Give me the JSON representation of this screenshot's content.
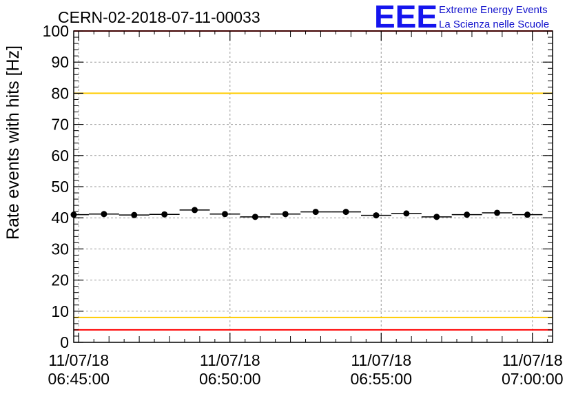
{
  "header": {
    "title": "CERN-02-2018-07-11-00033",
    "logo_mark": "EEE",
    "logo_line1": "Extreme Energy Events",
    "logo_line2": "La Scienza nelle Scuole"
  },
  "chart_data": {
    "type": "scatter",
    "ylabel": "Rate events with hits [Hz]",
    "xlabel": "",
    "ylim": [
      0,
      100
    ],
    "y_ticks": [
      0,
      10,
      20,
      30,
      40,
      50,
      60,
      70,
      80,
      90,
      100
    ],
    "xlim": [
      "2018-07-11 06:44:50",
      "2018-07-11 07:00:40"
    ],
    "x_ticks": [
      {
        "line1": "11/07/18",
        "line2": "06:45:00",
        "value": "2018-07-11 06:45:00"
      },
      {
        "line1": "11/07/18",
        "line2": "06:50:00",
        "value": "2018-07-11 06:50:00"
      },
      {
        "line1": "11/07/18",
        "line2": "06:55:00",
        "value": "2018-07-11 06:55:00"
      },
      {
        "line1": "11/07/18",
        "line2": "07:00:00",
        "value": "2018-07-11 07:00:00"
      }
    ],
    "grid": true,
    "series": [
      {
        "marker": "circle",
        "color": "#000000",
        "bin_width_seconds": 60,
        "points": [
          {
            "x": "2018-07-11 06:44:50",
            "y": 41.0
          },
          {
            "x": "2018-07-11 06:45:50",
            "y": 41.2
          },
          {
            "x": "2018-07-11 06:46:50",
            "y": 40.9
          },
          {
            "x": "2018-07-11 06:47:50",
            "y": 41.1
          },
          {
            "x": "2018-07-11 06:48:50",
            "y": 42.5
          },
          {
            "x": "2018-07-11 06:49:50",
            "y": 41.2
          },
          {
            "x": "2018-07-11 06:50:50",
            "y": 40.3
          },
          {
            "x": "2018-07-11 06:51:50",
            "y": 41.2
          },
          {
            "x": "2018-07-11 06:52:50",
            "y": 41.9
          },
          {
            "x": "2018-07-11 06:53:50",
            "y": 41.9
          },
          {
            "x": "2018-07-11 06:54:50",
            "y": 40.8
          },
          {
            "x": "2018-07-11 06:55:50",
            "y": 41.4
          },
          {
            "x": "2018-07-11 06:56:50",
            "y": 40.3
          },
          {
            "x": "2018-07-11 06:57:50",
            "y": 41.0
          },
          {
            "x": "2018-07-11 06:58:50",
            "y": 41.6
          },
          {
            "x": "2018-07-11 06:59:50",
            "y": 41.0
          }
        ]
      }
    ],
    "reference_lines": [
      {
        "y": 100,
        "color": "#ff0000"
      },
      {
        "y": 80,
        "color": "#ffcc00"
      },
      {
        "y": 8,
        "color": "#ffcc00"
      },
      {
        "y": 4,
        "color": "#ff0000"
      }
    ]
  }
}
